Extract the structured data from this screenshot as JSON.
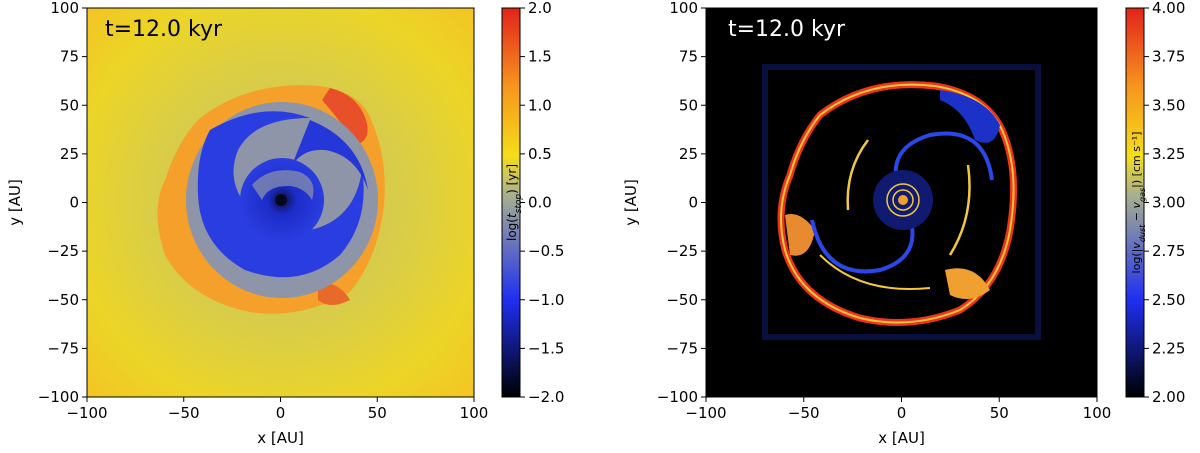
{
  "chart_data": [
    {
      "type": "heatmap",
      "panel": "left",
      "annotation": "t=12.0 kyr",
      "annotation_color": "#000000",
      "xlabel": "x [AU]",
      "ylabel": "y [AU]",
      "xlim": [
        -100,
        100
      ],
      "ylim": [
        -100,
        100
      ],
      "xticks": [
        -100,
        -50,
        0,
        50,
        100
      ],
      "yticks": [
        -100,
        -75,
        -50,
        -25,
        0,
        25,
        50,
        75,
        100
      ],
      "xtick_labels": [
        "−100",
        "−50",
        "0",
        "50",
        "100"
      ],
      "ytick_labels": [
        "−100",
        "−75",
        "−50",
        "−25",
        "0",
        "25",
        "50",
        "75",
        "100"
      ],
      "background_color": "#ecd223",
      "colormap": "black-blue-yellow-red",
      "colorbar": {
        "label": "log(t_stop) [yr]",
        "label_prefix": "log(",
        "label_var": "t",
        "label_sub": "stop",
        "label_suffix": ") [yr]",
        "range": [
          -2.0,
          2.0
        ],
        "ticks": [
          2.0,
          1.5,
          1.0,
          0.5,
          0.0,
          -0.5,
          -1.0,
          -1.5,
          -2.0
        ],
        "tick_labels": [
          "2.0",
          "1.5",
          "1.0",
          "0.5",
          "0.0",
          "−0.5",
          "−1.0",
          "−1.5",
          "−2.0"
        ]
      }
    },
    {
      "type": "heatmap",
      "panel": "right",
      "annotation": "t=12.0 kyr",
      "annotation_color": "#ffffff",
      "xlabel": "x [AU]",
      "ylabel": "y [AU]",
      "xlim": [
        -100,
        100
      ],
      "ylim": [
        -100,
        100
      ],
      "xticks": [
        -100,
        -50,
        0,
        50,
        100
      ],
      "yticks": [
        -100,
        -75,
        -50,
        -25,
        0,
        25,
        50,
        75,
        100
      ],
      "xtick_labels": [
        "−100",
        "−50",
        "0",
        "50",
        "100"
      ],
      "ytick_labels": [
        "−100",
        "−75",
        "−50",
        "−25",
        "0",
        "25",
        "50",
        "75",
        "100"
      ],
      "background_color": "#000000",
      "colormap": "black-blue-yellow-red",
      "colorbar": {
        "label": "log(|v_dust − v_gas|) [cm s⁻¹]",
        "label_prefix": "log(|",
        "label_var": "v",
        "label_sub": "dust",
        "label_mid": " − ",
        "label_var2": "v",
        "label_sub2": "gas",
        "label_suffix": "|) [cm s⁻¹]",
        "range": [
          2.0,
          4.0
        ],
        "ticks": [
          4.0,
          3.75,
          3.5,
          3.25,
          3.0,
          2.75,
          2.5,
          2.25,
          2.0
        ],
        "tick_labels": [
          "4.00",
          "3.75",
          "3.50",
          "3.25",
          "3.00",
          "2.75",
          "2.50",
          "2.25",
          "2.00"
        ]
      }
    }
  ],
  "colors": {
    "cmap_black": "#000000",
    "cmap_blue": "#1f2ff0",
    "cmap_yellow": "#f5de1a",
    "cmap_orange": "#f7941d",
    "cmap_red": "#e2231a",
    "left_gray_disk": "#8e95a8",
    "left_blue": "#2a3de0",
    "right_ring_red": "#f0341c",
    "right_ring_yellow": "#f1c93a",
    "right_ring_blue": "#1c31c8"
  }
}
